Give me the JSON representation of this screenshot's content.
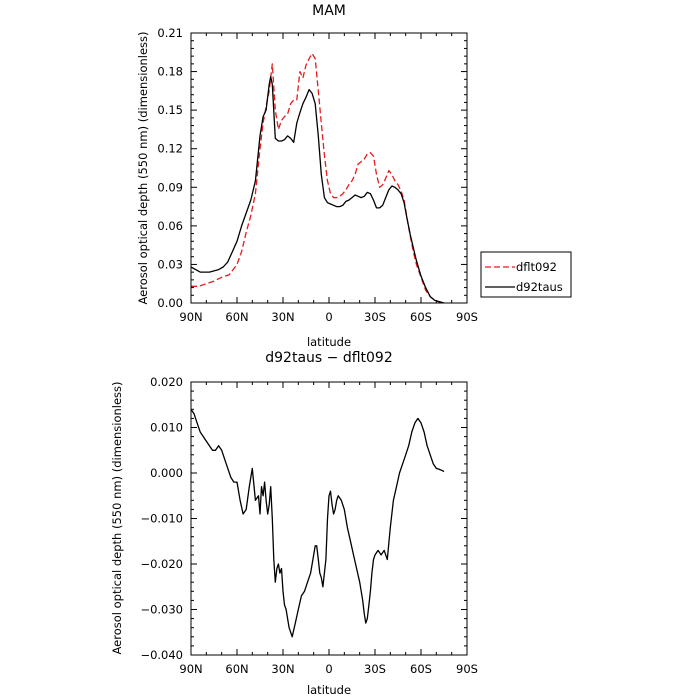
{
  "chart_data": [
    {
      "type": "line",
      "title": "MAM",
      "xlabel": "latitude",
      "ylabel": "Aerosol optical depth (550 nm) (dimensionless)",
      "xlim": [
        90,
        -90
      ],
      "ylim": [
        0,
        0.21
      ],
      "xticks": [
        90,
        60,
        30,
        0,
        -30,
        -60,
        -90
      ],
      "xtick_labels": [
        "90N",
        "60N",
        "30N",
        "0",
        "30S",
        "60S",
        "90S"
      ],
      "yticks": [
        0,
        0.03,
        0.06,
        0.09,
        0.12,
        0.15,
        0.18,
        0.21
      ],
      "ytick_labels": [
        "0.00",
        "0.03",
        "0.06",
        "0.09",
        "0.12",
        "0.15",
        "0.18",
        "0.21"
      ],
      "legend_position": "right",
      "series": [
        {
          "name": "dflt092",
          "color": "#e41a1c",
          "dash": "dashed",
          "x": [
            90,
            85,
            80,
            75,
            70,
            65,
            60,
            57,
            54,
            51,
            48,
            45,
            43,
            41,
            39,
            37,
            35,
            33,
            31,
            29,
            27,
            25,
            23,
            21,
            19,
            17,
            15,
            13,
            11,
            9,
            7,
            5,
            3,
            1,
            -1,
            -3,
            -5,
            -7,
            -9,
            -11,
            -13,
            -15,
            -17,
            -19,
            -21,
            -23,
            -25,
            -27,
            -29,
            -31,
            -33,
            -35,
            -37,
            -39,
            -41,
            -43,
            -45,
            -47,
            -49,
            -51,
            -53,
            -55,
            -57,
            -60,
            -63,
            -66,
            -69,
            -72,
            -75
          ],
          "y": [
            0.013,
            0.013,
            0.015,
            0.017,
            0.02,
            0.022,
            0.03,
            0.04,
            0.055,
            0.068,
            0.085,
            0.12,
            0.14,
            0.153,
            0.165,
            0.186,
            0.15,
            0.135,
            0.142,
            0.145,
            0.147,
            0.155,
            0.158,
            0.158,
            0.18,
            0.175,
            0.185,
            0.19,
            0.194,
            0.19,
            0.165,
            0.14,
            0.115,
            0.095,
            0.085,
            0.082,
            0.082,
            0.083,
            0.085,
            0.088,
            0.092,
            0.095,
            0.1,
            0.108,
            0.11,
            0.112,
            0.116,
            0.117,
            0.114,
            0.1,
            0.09,
            0.092,
            0.097,
            0.103,
            0.1,
            0.095,
            0.092,
            0.087,
            0.08,
            0.065,
            0.052,
            0.04,
            0.03,
            0.02,
            0.01,
            0.005,
            0.002,
            0.001,
            0.0
          ]
        },
        {
          "name": "d92taus",
          "color": "#000000",
          "dash": "solid",
          "x": [
            90,
            87,
            84,
            81,
            78,
            75,
            72,
            69,
            66,
            63,
            60,
            57,
            54,
            51,
            48,
            45,
            43,
            41,
            39,
            38,
            37,
            35,
            33,
            31,
            29,
            27,
            25,
            23,
            21,
            19,
            17,
            15,
            13,
            11,
            9,
            7,
            5,
            3,
            1,
            -1,
            -3,
            -5,
            -7,
            -9,
            -11,
            -13,
            -15,
            -17,
            -19,
            -21,
            -23,
            -25,
            -27,
            -29,
            -31,
            -33,
            -35,
            -37,
            -39,
            -41,
            -43,
            -45,
            -47,
            -49,
            -51,
            -53,
            -55,
            -57,
            -60,
            -63,
            -66,
            -69,
            -72,
            -75
          ],
          "y": [
            0.028,
            0.026,
            0.024,
            0.024,
            0.024,
            0.025,
            0.026,
            0.028,
            0.032,
            0.04,
            0.048,
            0.06,
            0.07,
            0.08,
            0.095,
            0.13,
            0.145,
            0.15,
            0.17,
            0.176,
            0.17,
            0.128,
            0.126,
            0.126,
            0.127,
            0.13,
            0.128,
            0.125,
            0.14,
            0.148,
            0.155,
            0.16,
            0.166,
            0.163,
            0.155,
            0.13,
            0.1,
            0.082,
            0.078,
            0.077,
            0.076,
            0.075,
            0.075,
            0.076,
            0.079,
            0.08,
            0.082,
            0.084,
            0.083,
            0.082,
            0.083,
            0.086,
            0.085,
            0.08,
            0.074,
            0.074,
            0.076,
            0.082,
            0.088,
            0.091,
            0.09,
            0.088,
            0.085,
            0.078,
            0.065,
            0.053,
            0.043,
            0.033,
            0.021,
            0.012,
            0.005,
            0.002,
            0.001,
            0.0
          ]
        }
      ]
    },
    {
      "type": "line",
      "title": "d92taus − dflt092",
      "xlabel": "latitude",
      "ylabel": "Aerosol optical depth (550 nm) (dimensionless)",
      "xlim": [
        90,
        -90
      ],
      "ylim": [
        -0.04,
        0.02
      ],
      "xticks": [
        90,
        60,
        30,
        0,
        -30,
        -60,
        -90
      ],
      "xtick_labels": [
        "90N",
        "60N",
        "30N",
        "0",
        "30S",
        "60S",
        "90S"
      ],
      "yticks": [
        -0.04,
        -0.03,
        -0.02,
        -0.01,
        0.0,
        0.01,
        0.02
      ],
      "ytick_labels": [
        "−0.040",
        "−0.030",
        "−0.020",
        "−0.010",
        "0.000",
        "0.010",
        "0.020"
      ],
      "series": [
        {
          "color": "#000000",
          "dash": "solid",
          "x": [
            90,
            88,
            86,
            84,
            82,
            80,
            78,
            76,
            74,
            72,
            70,
            68,
            66,
            64,
            62,
            60,
            58,
            56,
            54,
            52,
            50,
            48,
            46,
            45,
            44,
            43,
            42,
            41,
            40,
            39,
            38,
            37,
            36,
            35,
            34,
            33,
            32,
            31,
            30,
            29,
            28,
            27,
            26,
            25,
            24,
            22,
            20,
            18,
            16,
            14,
            12,
            10,
            9,
            8,
            7,
            6,
            5,
            4,
            3,
            2,
            1,
            0,
            -1,
            -2,
            -3,
            -4,
            -5,
            -6,
            -8,
            -10,
            -12,
            -14,
            -16,
            -18,
            -20,
            -22,
            -23,
            -24,
            -25,
            -26,
            -27,
            -28,
            -29,
            -30,
            -32,
            -34,
            -36,
            -38,
            -40,
            -42,
            -44,
            -46,
            -48,
            -50,
            -52,
            -54,
            -56,
            -58,
            -60,
            -62,
            -64,
            -66,
            -68,
            -70,
            -72,
            -74,
            -75
          ],
          "y": [
            0.014,
            0.013,
            0.011,
            0.009,
            0.008,
            0.007,
            0.006,
            0.005,
            0.005,
            0.006,
            0.005,
            0.003,
            0.001,
            -0.001,
            -0.002,
            -0.002,
            -0.006,
            -0.009,
            -0.008,
            -0.003,
            0.001,
            -0.006,
            -0.005,
            -0.009,
            -0.003,
            -0.005,
            -0.002,
            -0.006,
            -0.009,
            -0.007,
            -0.003,
            -0.01,
            -0.019,
            -0.024,
            -0.021,
            -0.02,
            -0.022,
            -0.021,
            -0.026,
            -0.029,
            -0.03,
            -0.032,
            -0.034,
            -0.035,
            -0.036,
            -0.033,
            -0.03,
            -0.027,
            -0.026,
            -0.024,
            -0.022,
            -0.018,
            -0.016,
            -0.016,
            -0.019,
            -0.022,
            -0.023,
            -0.025,
            -0.022,
            -0.019,
            -0.01,
            -0.005,
            -0.004,
            -0.007,
            -0.009,
            -0.008,
            -0.006,
            -0.005,
            -0.006,
            -0.008,
            -0.012,
            -0.015,
            -0.018,
            -0.021,
            -0.024,
            -0.028,
            -0.031,
            -0.033,
            -0.032,
            -0.029,
            -0.026,
            -0.022,
            -0.019,
            -0.018,
            -0.017,
            -0.018,
            -0.017,
            -0.019,
            -0.012,
            -0.006,
            -0.003,
            0.0,
            0.002,
            0.004,
            0.006,
            0.009,
            0.011,
            0.012,
            0.011,
            0.009,
            0.006,
            0.004,
            0.002,
            0.001,
            0.0008,
            0.0005,
            0.0003
          ]
        }
      ]
    }
  ]
}
